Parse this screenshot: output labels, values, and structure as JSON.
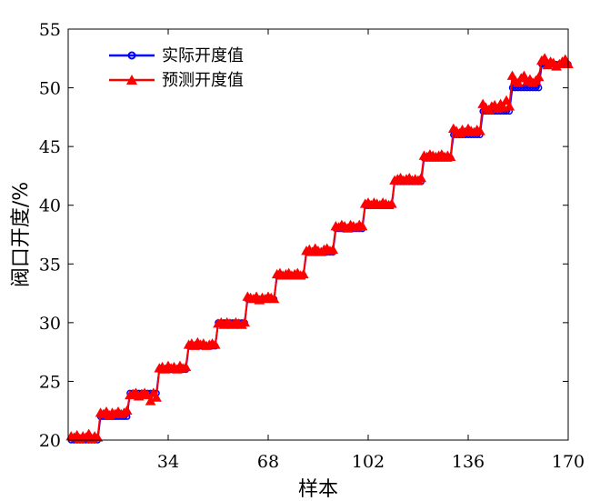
{
  "chart_data": {
    "type": "line",
    "title": "",
    "xlabel": "样本",
    "ylabel": "阀口开度/%",
    "xlim": [
      0,
      170
    ],
    "ylim": [
      20,
      55
    ],
    "xticks": [
      34,
      68,
      102,
      136,
      170
    ],
    "yticks": [
      20,
      25,
      30,
      35,
      40,
      45,
      50,
      55
    ],
    "grid": false,
    "legend_position": "top-left",
    "series": [
      {
        "name": "实际开度值",
        "color": "#0000ff",
        "marker": "circle",
        "x": [
          1,
          2,
          3,
          4,
          5,
          6,
          7,
          8,
          9,
          10,
          11,
          12,
          13,
          14,
          15,
          16,
          17,
          18,
          19,
          20,
          21,
          22,
          23,
          24,
          25,
          26,
          27,
          28,
          29,
          30,
          31,
          32,
          33,
          34,
          35,
          36,
          37,
          38,
          39,
          40,
          41,
          42,
          43,
          44,
          45,
          46,
          47,
          48,
          49,
          50,
          51,
          52,
          53,
          54,
          55,
          56,
          57,
          58,
          59,
          60,
          61,
          62,
          63,
          64,
          65,
          66,
          67,
          68,
          69,
          70,
          71,
          72,
          73,
          74,
          75,
          76,
          77,
          78,
          79,
          80,
          81,
          82,
          83,
          84,
          85,
          86,
          87,
          88,
          89,
          90,
          91,
          92,
          93,
          94,
          95,
          96,
          97,
          98,
          99,
          100,
          101,
          102,
          103,
          104,
          105,
          106,
          107,
          108,
          109,
          110,
          111,
          112,
          113,
          114,
          115,
          116,
          117,
          118,
          119,
          120,
          121,
          122,
          123,
          124,
          125,
          126,
          127,
          128,
          129,
          130,
          131,
          132,
          133,
          134,
          135,
          136,
          137,
          138,
          139,
          140,
          141,
          142,
          143,
          144,
          145,
          146,
          147,
          148,
          149,
          150,
          151,
          152,
          153,
          154,
          155,
          156,
          157,
          158,
          159,
          160,
          161,
          162,
          163,
          164,
          165,
          166,
          167,
          168,
          169,
          170
        ],
        "values": [
          20,
          20,
          20,
          20,
          20,
          20,
          20,
          20,
          20,
          20,
          22,
          22,
          22,
          22,
          22,
          22,
          22,
          22,
          22,
          22,
          24,
          24,
          24,
          24,
          24,
          24,
          24,
          24,
          24,
          24,
          26,
          26,
          26,
          26,
          26,
          26,
          26,
          26,
          26,
          26,
          28,
          28,
          28,
          28,
          28,
          28,
          28,
          28,
          28,
          28,
          30,
          30,
          30,
          30,
          30,
          30,
          30,
          30,
          30,
          30,
          32,
          32,
          32,
          32,
          32,
          32,
          32,
          32,
          32,
          32,
          34,
          34,
          34,
          34,
          34,
          34,
          34,
          34,
          34,
          34,
          36,
          36,
          36,
          36,
          36,
          36,
          36,
          36,
          36,
          36,
          38,
          38,
          38,
          38,
          38,
          38,
          38,
          38,
          38,
          38,
          40,
          40,
          40,
          40,
          40,
          40,
          40,
          40,
          40,
          40,
          42,
          42,
          42,
          42,
          42,
          42,
          42,
          42,
          42,
          42,
          44,
          44,
          44,
          44,
          44,
          44,
          44,
          44,
          44,
          44,
          46,
          46,
          46,
          46,
          46,
          46,
          46,
          46,
          46,
          46,
          48,
          48,
          48,
          48,
          48,
          48,
          48,
          48,
          48,
          48,
          50,
          50,
          50,
          50,
          50,
          50,
          50,
          50,
          50,
          50,
          52,
          52,
          52,
          52,
          52,
          52,
          52,
          52,
          52,
          52
        ]
      },
      {
        "name": "预测开度值",
        "color": "#ff0000",
        "marker": "triangle",
        "x": [
          1,
          2,
          3,
          4,
          5,
          6,
          7,
          8,
          9,
          10,
          11,
          12,
          13,
          14,
          15,
          16,
          17,
          18,
          19,
          20,
          21,
          22,
          23,
          24,
          25,
          26,
          27,
          28,
          29,
          30,
          31,
          32,
          33,
          34,
          35,
          36,
          37,
          38,
          39,
          40,
          41,
          42,
          43,
          44,
          45,
          46,
          47,
          48,
          49,
          50,
          51,
          52,
          53,
          54,
          55,
          56,
          57,
          58,
          59,
          60,
          61,
          62,
          63,
          64,
          65,
          66,
          67,
          68,
          69,
          70,
          71,
          72,
          73,
          74,
          75,
          76,
          77,
          78,
          79,
          80,
          81,
          82,
          83,
          84,
          85,
          86,
          87,
          88,
          89,
          90,
          91,
          92,
          93,
          94,
          95,
          96,
          97,
          98,
          99,
          100,
          101,
          102,
          103,
          104,
          105,
          106,
          107,
          108,
          109,
          110,
          111,
          112,
          113,
          114,
          115,
          116,
          117,
          118,
          119,
          120,
          121,
          122,
          123,
          124,
          125,
          126,
          127,
          128,
          129,
          130,
          131,
          132,
          133,
          134,
          135,
          136,
          137,
          138,
          139,
          140,
          141,
          142,
          143,
          144,
          145,
          146,
          147,
          148,
          149,
          150,
          151,
          152,
          153,
          154,
          155,
          156,
          157,
          158,
          159,
          160,
          161,
          162,
          163,
          164,
          165,
          166,
          167,
          168,
          169,
          170
        ],
        "values": [
          20.3,
          20.2,
          20.4,
          20.1,
          20.3,
          20.2,
          20.5,
          20.1,
          20.3,
          20.2,
          22.3,
          22.2,
          22.4,
          22.1,
          22.3,
          22.2,
          22.4,
          22.2,
          22.3,
          22.5,
          23.8,
          23.9,
          24.0,
          23.7,
          23.9,
          24.0,
          23.8,
          23.3,
          24.0,
          23.6,
          26.1,
          26.2,
          26.0,
          26.3,
          26.1,
          26.2,
          26.0,
          26.3,
          26.1,
          26.2,
          28.1,
          28.2,
          28.0,
          28.3,
          28.1,
          28.2,
          28.0,
          28.1,
          28.2,
          28.1,
          29.9,
          30.0,
          29.8,
          30.0,
          29.9,
          29.8,
          30.0,
          29.9,
          29.8,
          30.0,
          32.2,
          32.1,
          32.0,
          32.2,
          31.9,
          32.1,
          32.0,
          32.2,
          32.1,
          32.0,
          34.1,
          34.2,
          34.0,
          34.1,
          34.2,
          34.0,
          34.1,
          34.2,
          34.0,
          34.1,
          36.1,
          36.2,
          36.0,
          36.3,
          36.1,
          36.0,
          36.2,
          36.3,
          36.1,
          36.2,
          38.2,
          38.1,
          38.3,
          38.2,
          38.0,
          38.3,
          38.2,
          38.1,
          38.3,
          38.2,
          40.1,
          40.2,
          40.0,
          40.2,
          40.1,
          40.0,
          40.2,
          40.1,
          40.0,
          40.1,
          42.1,
          42.2,
          42.3,
          42.1,
          42.2,
          42.3,
          42.1,
          42.2,
          42.1,
          42.3,
          44.2,
          44.1,
          44.3,
          44.2,
          44.1,
          44.2,
          44.3,
          44.1,
          44.2,
          44.1,
          46.5,
          46.3,
          46.1,
          46.4,
          46.2,
          46.5,
          46.3,
          46.2,
          46.4,
          46.3,
          48.6,
          48.3,
          48.1,
          48.4,
          48.5,
          48.2,
          48.6,
          48.3,
          48.9,
          48.4,
          51.0,
          50.6,
          50.4,
          50.8,
          51.0,
          50.5,
          50.7,
          50.4,
          50.6,
          50.9,
          52.3,
          52.5,
          51.9,
          52.2,
          52.1,
          51.8,
          52.0,
          52.2,
          52.4,
          52.0
        ]
      }
    ]
  }
}
